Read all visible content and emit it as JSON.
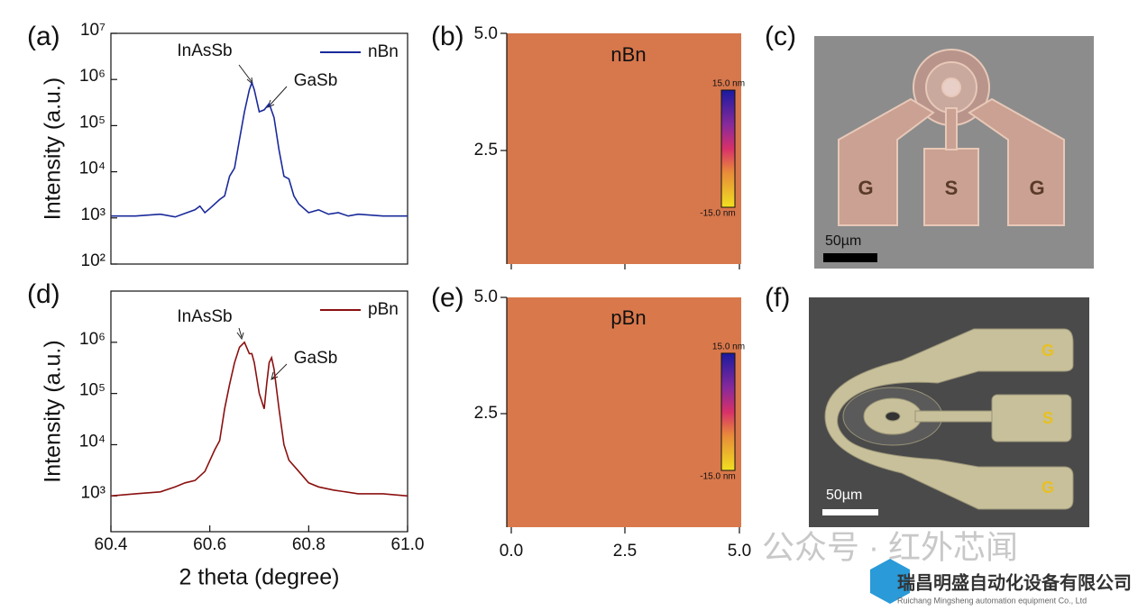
{
  "chart_data": [
    {
      "type": "line",
      "panel_label": "(a)",
      "ylabel": "Intensity (a.u.)",
      "xlim": [
        60.4,
        61.0
      ],
      "ylim": [
        100,
        10000000
      ],
      "log_scale": "y",
      "legend": "upper right",
      "yticks": [
        {
          "value": 100,
          "label": "10²"
        },
        {
          "value": 1000,
          "label": "10³"
        },
        {
          "value": 10000,
          "label": "10⁴"
        },
        {
          "value": 100000,
          "label": "10⁵"
        },
        {
          "value": 1000000,
          "label": "10⁶"
        },
        {
          "value": 10000000,
          "label": "10⁷"
        }
      ],
      "annotations": [
        {
          "text": "InAsSb"
        },
        {
          "text": "GaSb"
        }
      ],
      "x": [
        60.4,
        60.45,
        60.5,
        60.53,
        60.55,
        60.57,
        60.58,
        60.59,
        60.6,
        60.62,
        60.63,
        60.64,
        60.65,
        60.66,
        60.67,
        60.68,
        60.685,
        60.69,
        60.7,
        60.71,
        60.72,
        60.73,
        60.74,
        60.75,
        60.76,
        60.77,
        60.78,
        60.8,
        60.82,
        60.84,
        60.86,
        60.88,
        60.9,
        60.95,
        61.0
      ],
      "series": [
        {
          "name": "nBn",
          "color": "#1a2a9a",
          "values": [
            1100,
            1100,
            1200,
            1050,
            1250,
            1500,
            1800,
            1300,
            1600,
            2500,
            3000,
            8000,
            12000,
            50000,
            200000,
            600000,
            850000,
            600000,
            200000,
            220000,
            300000,
            150000,
            30000,
            8000,
            7000,
            3000,
            2000,
            1300,
            1500,
            1200,
            1300,
            1100,
            1200,
            1100,
            1100
          ]
        }
      ]
    },
    {
      "type": "line",
      "panel_label": "(d)",
      "ylabel": "Intensity (a.u.)",
      "xlabel": "2 theta (degree)",
      "xlim": [
        60.4,
        61.0
      ],
      "ylim": [
        200,
        10000000
      ],
      "log_scale": "y",
      "legend": "upper right",
      "xticks": [
        60.4,
        60.6,
        60.8,
        {
          "value": 61.0,
          "label": "61.0"
        }
      ],
      "yticks": [
        {
          "value": 1000,
          "label": "10³"
        },
        {
          "value": 10000,
          "label": "10⁴"
        },
        {
          "value": 100000,
          "label": "10⁵"
        },
        {
          "value": 1000000,
          "label": "10⁶"
        }
      ],
      "annotations": [
        {
          "text": "InAsSb"
        },
        {
          "text": "GaSb"
        }
      ],
      "x": [
        60.4,
        60.45,
        60.5,
        60.53,
        60.55,
        60.57,
        60.59,
        60.61,
        60.62,
        60.63,
        60.64,
        60.65,
        60.66,
        60.67,
        60.68,
        60.685,
        60.69,
        60.7,
        60.71,
        60.715,
        60.72,
        60.725,
        60.73,
        60.74,
        60.75,
        60.76,
        60.78,
        60.8,
        60.82,
        60.85,
        60.9,
        60.95,
        61.0
      ],
      "series": [
        {
          "name": "pBn",
          "color": "#8b1010",
          "values": [
            1000,
            1100,
            1200,
            1500,
            1800,
            2000,
            3000,
            8000,
            12000,
            50000,
            150000,
            400000,
            800000,
            1000000,
            600000,
            600000,
            400000,
            100000,
            50000,
            150000,
            400000,
            500000,
            300000,
            50000,
            10000,
            5000,
            3000,
            1800,
            1500,
            1300,
            1100,
            1100,
            1000
          ]
        }
      ]
    }
  ],
  "afm": {
    "panel_labels": [
      "(b)",
      "(e)"
    ],
    "samples": [
      "nBn",
      "pBn"
    ],
    "yticks": [
      "5.0",
      "2.5"
    ],
    "xticks": [
      "0.0",
      "2.5",
      "5.0"
    ],
    "colorbar": [
      "15.0 nm",
      "-15.0 nm"
    ]
  },
  "micrographs": {
    "panel_labels": [
      "(c)",
      "(f)"
    ],
    "pads": [
      "G",
      "S",
      "G"
    ],
    "scale_bar": "50µm"
  },
  "watermark": {
    "channel": "公众号 · 红外芯闻",
    "company": "瑞昌明盛自动化设备有限公司",
    "company_en": "Ruichang Mingsheng automation equipment Co., Ltd"
  }
}
